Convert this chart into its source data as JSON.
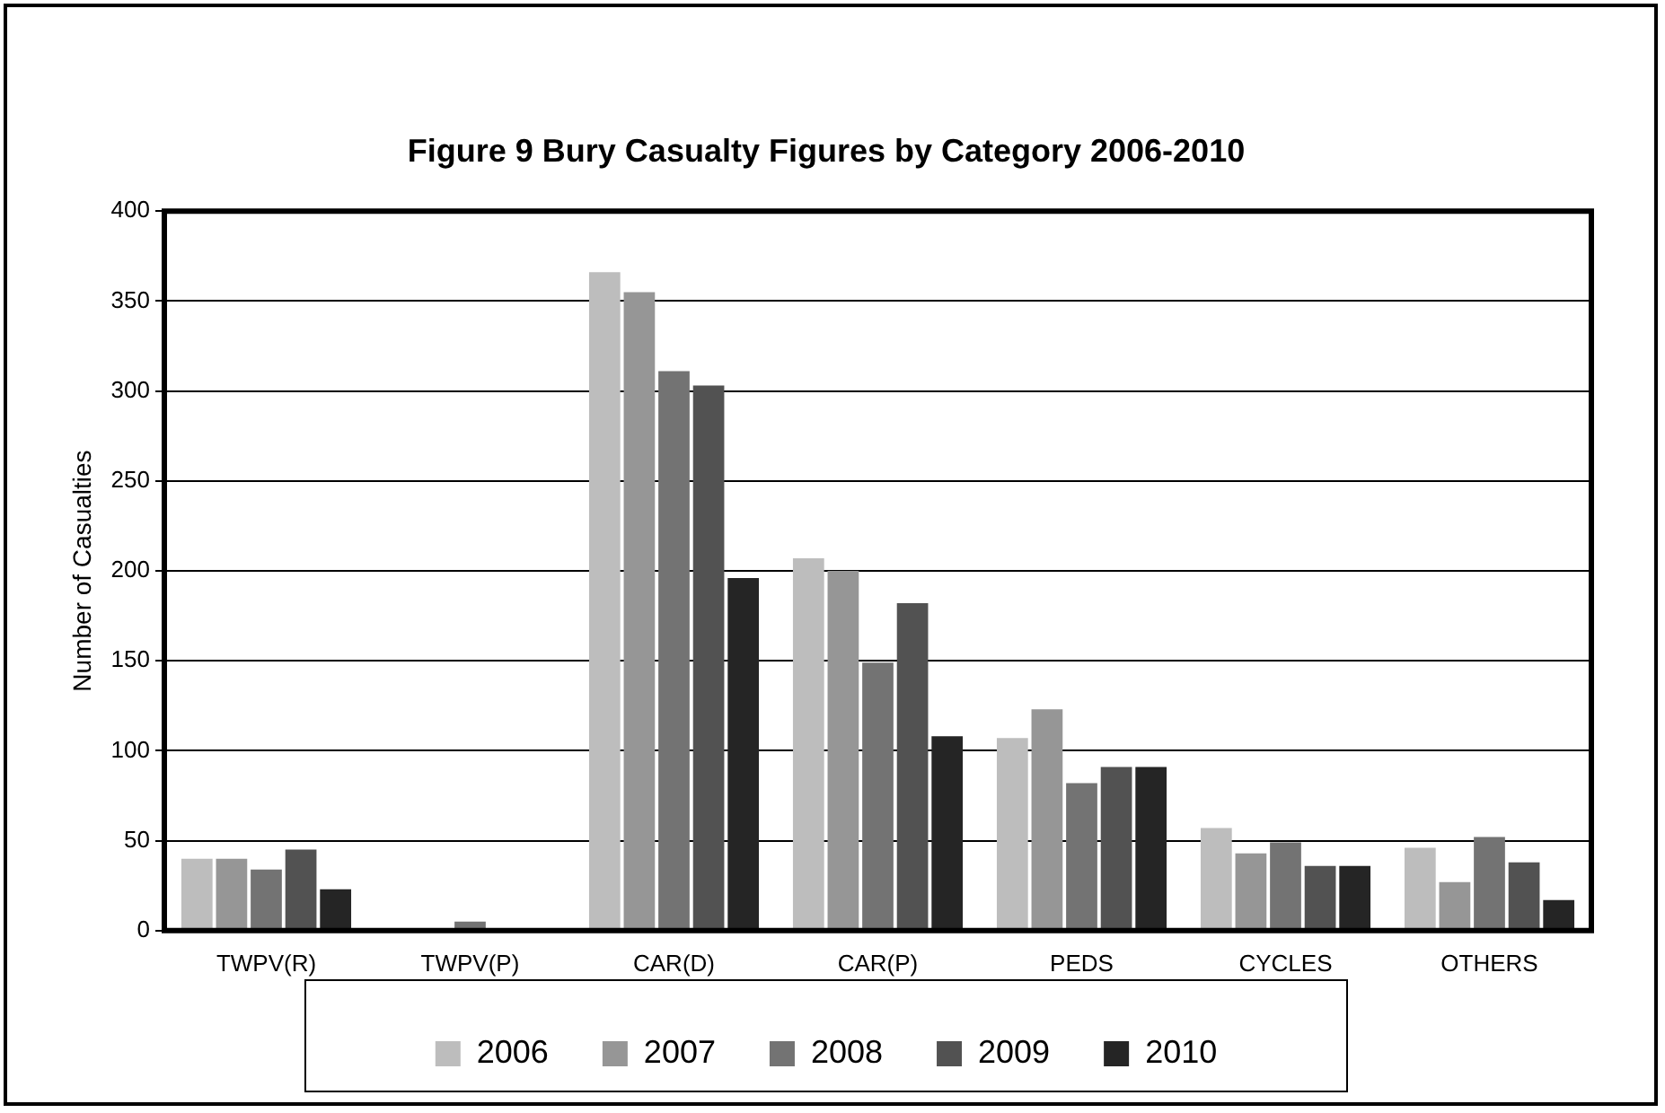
{
  "chart_data": {
    "type": "bar",
    "title": "Figure 9 Bury Casualty Figures by Category 2006-2010",
    "ylabel": "Number of Casualties",
    "categories": [
      "TWPV(R)",
      "TWPV(P)",
      "CAR(D)",
      "CAR(P)",
      "PEDS",
      "CYCLES",
      "OTHERS"
    ],
    "series": [
      {
        "name": "2006",
        "color": "#bdbdbd",
        "values": [
          40,
          0,
          366,
          207,
          107,
          57,
          46
        ]
      },
      {
        "name": "2007",
        "color": "#969696",
        "values": [
          40,
          0,
          355,
          200,
          123,
          43,
          27
        ]
      },
      {
        "name": "2008",
        "color": "#737373",
        "values": [
          34,
          5,
          311,
          149,
          82,
          49,
          52
        ]
      },
      {
        "name": "2009",
        "color": "#525252",
        "values": [
          45,
          0,
          303,
          182,
          91,
          36,
          38
        ]
      },
      {
        "name": "2010",
        "color": "#252525",
        "values": [
          23,
          0,
          196,
          108,
          91,
          36,
          17
        ]
      }
    ],
    "ylim": [
      0,
      400
    ],
    "yticks": [
      0,
      50,
      100,
      150,
      200,
      250,
      300,
      350,
      400
    ],
    "grid": "y",
    "legend": "bottom"
  }
}
